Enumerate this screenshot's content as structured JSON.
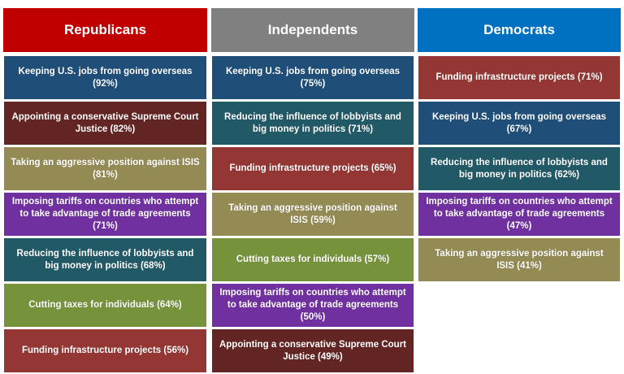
{
  "columns": [
    {
      "name": "Republicans",
      "color": "#c00000",
      "items": [
        {
          "text": "Keeping U.S. jobs from going overseas (92%)",
          "color": "#1f4e79"
        },
        {
          "text": "Appointing a conservative Supreme Court Justice (82%)",
          "color": "#632523"
        },
        {
          "text": "Taking an aggressive position against ISIS (81%)",
          "color": "#948a54"
        },
        {
          "text": "Imposing tariffs on countries who attempt to take advantage of trade agreements (71%)",
          "color": "#7030a0"
        },
        {
          "text": "Reducing the influence of lobbyists and big money in politics (68%)",
          "color": "#215967"
        },
        {
          "text": "Cutting taxes for individuals (64%)",
          "color": "#76933c"
        },
        {
          "text": "Funding infrastructure projects (56%)",
          "color": "#943634"
        }
      ]
    },
    {
      "name": "Independents",
      "color": "#808080",
      "items": [
        {
          "text": "Keeping U.S. jobs from going overseas (75%)",
          "color": "#1f4e79"
        },
        {
          "text": "Reducing the influence of lobbyists and big money in politics (71%)",
          "color": "#215967"
        },
        {
          "text": "Funding infrastructure projects (65%)",
          "color": "#943634"
        },
        {
          "text": "Taking an aggressive position against ISIS (59%)",
          "color": "#948a54"
        },
        {
          "text": "Cutting taxes for individuals (57%)",
          "color": "#76933c"
        },
        {
          "text": "Imposing tariffs on countries who attempt to take advantage of trade agreements (50%)",
          "color": "#7030a0"
        },
        {
          "text": "Appointing a conservative Supreme Court Justice (49%)",
          "color": "#632523"
        }
      ]
    },
    {
      "name": "Democrats",
      "color": "#0070c0",
      "items": [
        {
          "text": "Funding infrastructure projects (71%)",
          "color": "#943634"
        },
        {
          "text": "Keeping U.S. jobs from going overseas (67%)",
          "color": "#1f4e79"
        },
        {
          "text": "Reducing the influence of lobbyists and big money in politics (62%)",
          "color": "#215967"
        },
        {
          "text": "Imposing tariffs on countries who attempt to take advantage of trade agreements (47%)",
          "color": "#7030a0"
        },
        {
          "text": "Taking an aggressive position against ISIS (41%)",
          "color": "#948a54"
        }
      ]
    }
  ]
}
